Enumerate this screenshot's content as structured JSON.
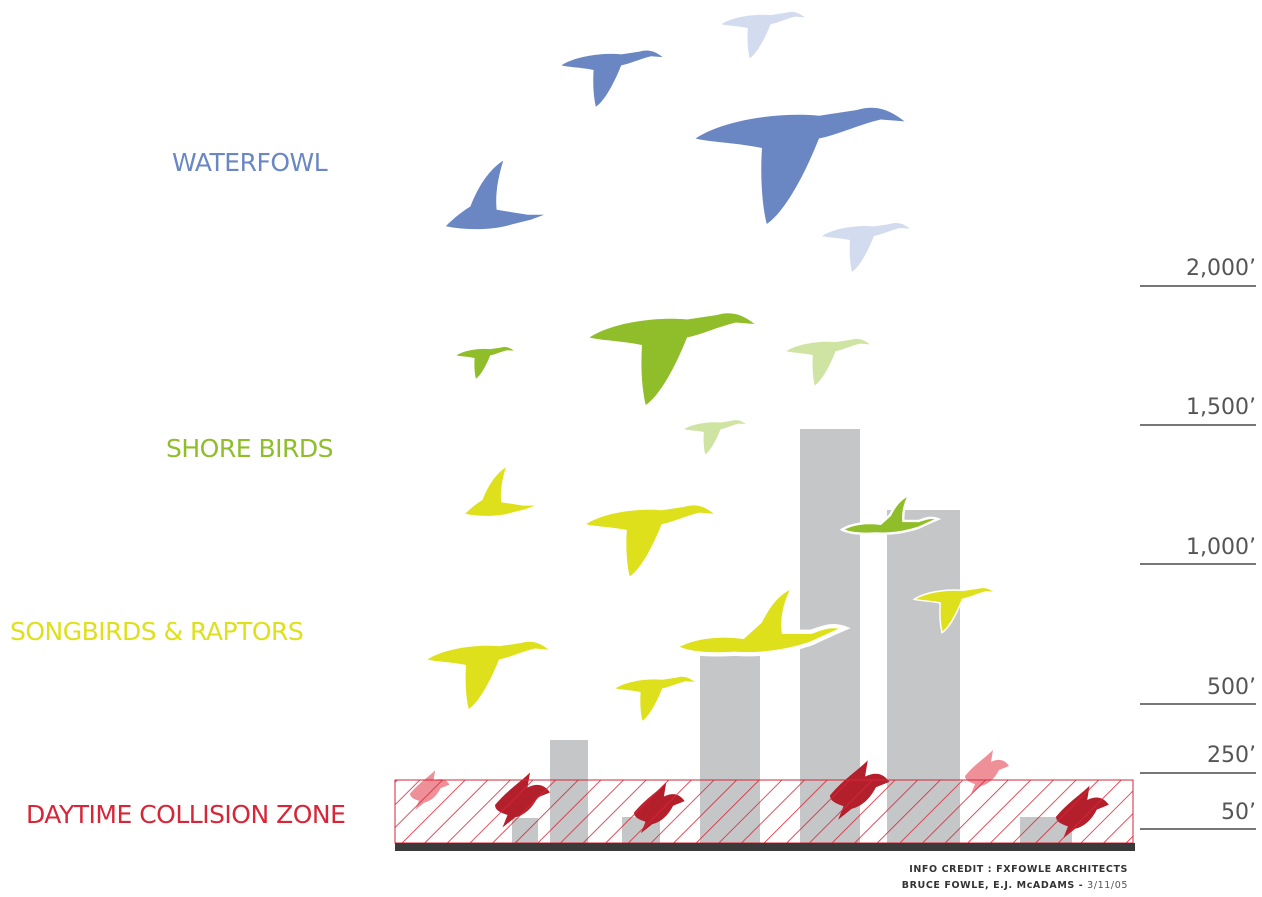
{
  "categories": {
    "waterfowl": {
      "label": "WATERFOWL",
      "color": "#6a87c4"
    },
    "shore_birds": {
      "label": "SHORE BIRDS",
      "color": "#8fbe2a"
    },
    "songbirds": {
      "label": "SONGBIRDS & RAPTORS",
      "color": "#dfe01c"
    },
    "collision": {
      "label": "DAYTIME COLLISION ZONE",
      "color": "#d72638"
    }
  },
  "altitudes": [
    "2,000’",
    "1,500’",
    "1,000’",
    "500’",
    "250’",
    "50’"
  ],
  "credit": {
    "line1": "INFO CREDIT : FXFOWLE ARCHITECTS",
    "line2": "BRUCE FOWLE, E.J. McADAMS - ",
    "date": "3/11/05"
  },
  "colors": {
    "building": "#c5c6c8",
    "ground": "#3a3a3a",
    "hatch": "#d72638",
    "pale_blue": "#d3dcef",
    "pale_green": "#cfe4a3",
    "pale_red": "#ef8f98"
  }
}
